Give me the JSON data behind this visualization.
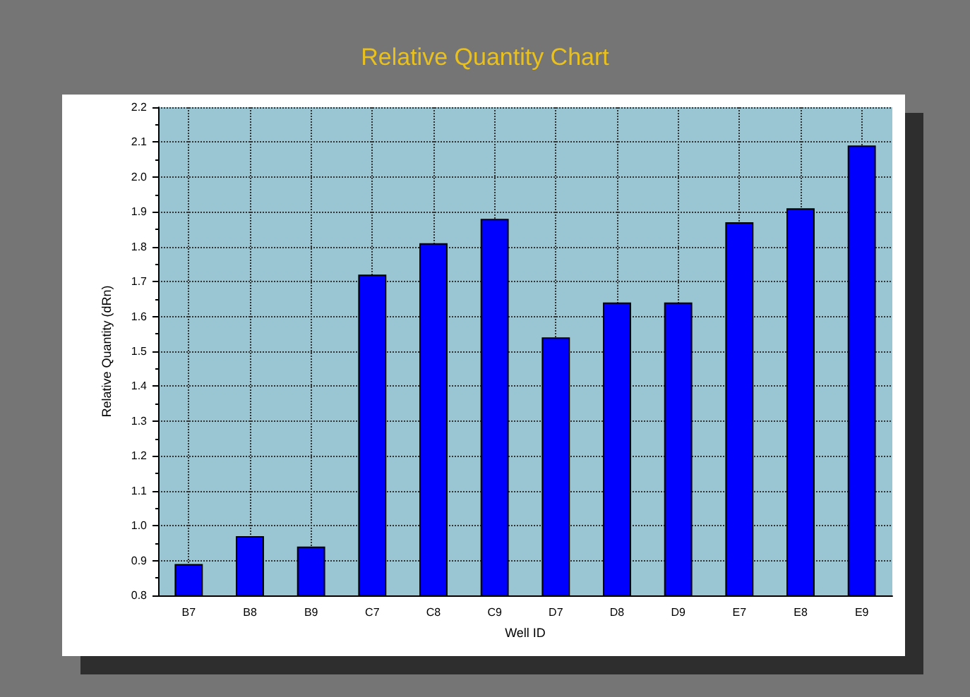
{
  "chart_data": {
    "type": "bar",
    "title": "Relative Quantity Chart",
    "xlabel": "Well ID",
    "ylabel": "Relative Quantity (dRn)",
    "categories": [
      "B7",
      "B8",
      "B9",
      "C7",
      "C8",
      "C9",
      "D7",
      "D8",
      "D9",
      "E7",
      "E8",
      "E9"
    ],
    "values": [
      0.89,
      0.97,
      0.94,
      1.72,
      1.81,
      1.88,
      1.54,
      1.64,
      1.64,
      1.87,
      1.91,
      2.09
    ],
    "color": "#0000ff",
    "ylim": [
      0.8,
      2.2
    ],
    "yticks": [
      0.8,
      0.9,
      {
        "value": 1.0,
        "label": "1.0"
      },
      1.1,
      1.2,
      1.3,
      1.4,
      1.5,
      1.6,
      1.7,
      1.8,
      1.9,
      {
        "value": 2.0,
        "label": "2.0"
      },
      2.1,
      2.2
    ],
    "grid": true
  }
}
